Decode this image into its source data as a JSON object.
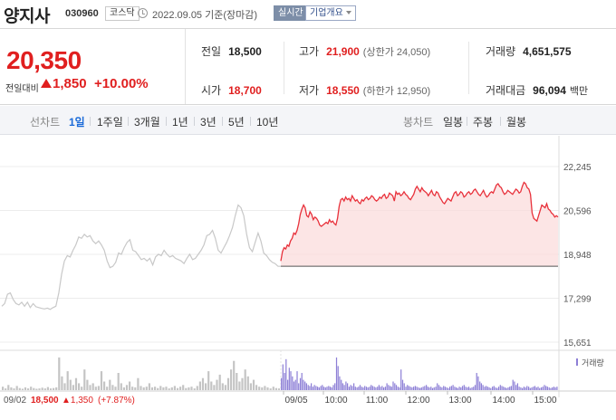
{
  "header": {
    "name": "양지사",
    "code": "030960",
    "market": "코스닥",
    "date": "2022.09.05  기준(장마감)",
    "realtime_label": "실시간",
    "company_label": "기업개요"
  },
  "price": {
    "current": "20,350",
    "change_label": "전일대비",
    "change": "1,850",
    "change_rate": "+10.00%"
  },
  "stats": {
    "prev_close_label": "전일",
    "prev_close": "18,500",
    "high_label": "고가",
    "high": "21,900",
    "upper_limit": "(상한가 24,050)",
    "volume_label": "거래량",
    "volume": "4,651,575",
    "open_label": "시가",
    "open": "18,700",
    "low_label": "저가",
    "low": "18,550",
    "lower_limit": "(하한가 12,950)",
    "amount_label": "거래대금",
    "amount": "96,094",
    "amount_unit": "백만"
  },
  "tabs": {
    "line_label": "선차트",
    "line_tabs": [
      "1일",
      "1주일",
      "3개월",
      "1년",
      "3년",
      "5년",
      "10년"
    ],
    "candle_label": "봉차트",
    "candle_tabs": [
      "일봉",
      "주봉",
      "월봉"
    ]
  },
  "colors": {
    "up": "#e01f1f",
    "line_today": "#e8313b",
    "area_fill": "#fbdcdc",
    "line_prev": "#c8c8c8",
    "volume_prev": "#c4c4c4",
    "volume_today": "#8d7fd6",
    "active_tab": "#1a6ad8"
  },
  "chart_data": {
    "type": "line",
    "y_ticks": [
      "22,245",
      "20,596",
      "18,948",
      "17,299",
      "15,651"
    ],
    "ylim": [
      15651,
      22245
    ],
    "x_labels": [
      "09/05",
      "10:00",
      "11:00",
      "12:00",
      "13:00",
      "14:00",
      "15:00"
    ],
    "prev_close": 18500,
    "volume_label": "거래량",
    "footer": {
      "date": "09/02",
      "close": "18,500",
      "change": "▲1,350",
      "rate": "(+7.87%)"
    },
    "series": [
      {
        "values": [
          17000,
          17100,
          17450,
          17500,
          17250,
          17100,
          17050,
          17150,
          17000,
          17150,
          16950,
          17100,
          16980,
          16950,
          16920,
          16900,
          16930,
          16880,
          16950,
          17000,
          17500,
          18200,
          18700,
          18900,
          18850,
          19100,
          19300,
          19600,
          19550,
          19700,
          19600,
          19650,
          19450,
          19350,
          19450,
          19300,
          19100,
          18700,
          18450,
          18500,
          18650,
          19000,
          18950,
          19200,
          19400,
          19500,
          19100,
          19050,
          18900,
          18750,
          18800,
          18700,
          18800,
          18550,
          18850,
          18950,
          18900,
          19100,
          18950,
          18850,
          18900,
          18800,
          18750,
          18700,
          18600,
          18800,
          18950,
          18750,
          18800,
          18950,
          19100,
          19300,
          19650,
          19700,
          19850,
          19550,
          19100,
          19000,
          19200,
          19400,
          19650,
          19950,
          20400,
          20800,
          20700,
          20400,
          19700,
          19200,
          19050,
          19400,
          19750,
          19450,
          19000,
          18900,
          18750,
          18650,
          18600,
          18500,
          18500
        ]
      },
      {
        "values": [
          18700,
          19050,
          19200,
          19150,
          19300,
          19250,
          19450,
          19550,
          19750,
          19700,
          19850,
          20100,
          20450,
          20650,
          20800,
          20700,
          20400,
          20350,
          20550,
          20450,
          20250,
          20350,
          20300,
          20200,
          20050,
          20000,
          20050,
          20100,
          20150,
          20100,
          20250,
          20150,
          20200,
          20100,
          20050,
          20300,
          20750,
          21000,
          21050,
          20950,
          21100,
          21000,
          21050,
          20950,
          21150,
          21050,
          20950,
          21000,
          20900,
          20850,
          21000,
          20950,
          21050,
          21100,
          21000,
          21050,
          21150,
          21100,
          21000,
          20950,
          21000,
          21100,
          21050,
          21150,
          21200,
          21050,
          21100,
          21250,
          21200,
          21150,
          20950,
          21300,
          21200,
          21250,
          21150,
          21200,
          21300,
          21200,
          21150,
          21050,
          21000,
          21100,
          21200,
          21400,
          21500,
          21400,
          21300,
          21450,
          21350,
          21300,
          21250,
          21150,
          21250,
          21350,
          21200,
          21150,
          21300,
          21250,
          21100,
          21000,
          20900,
          20850,
          20950,
          21050,
          21000,
          20950,
          21100,
          21250,
          21300,
          21150,
          21200,
          21300,
          21250,
          21100,
          21150,
          21250,
          21300,
          21200,
          21250,
          21350,
          21400,
          21300,
          21200,
          21150,
          21250,
          21350,
          21200,
          21100,
          21150,
          21250,
          21300,
          21250,
          21400,
          21550,
          21600,
          21500,
          21450,
          21300,
          21200,
          21250,
          21350,
          21300,
          21250,
          21200,
          21300,
          21400,
          21350,
          21250,
          21300,
          21500,
          21650,
          21600,
          21450,
          21400,
          21200,
          20500,
          20300,
          20250,
          20200,
          20400,
          20600,
          20800,
          20750,
          20700,
          20850,
          20650,
          20600,
          20500,
          20450,
          20350,
          20400,
          20350
        ]
      }
    ],
    "volume": {
      "prev": [
        0.1,
        0.05,
        0.15,
        0.08,
        0.05,
        0.12,
        0.06,
        0.04,
        0.08,
        0.05,
        0.1,
        0.06,
        0.04,
        0.05,
        0.07,
        0.05,
        0.09,
        0.05,
        0.06,
        0.08,
        0.95,
        0.4,
        0.2,
        0.55,
        0.3,
        0.15,
        0.35,
        0.2,
        0.1,
        0.6,
        0.3,
        0.15,
        0.2,
        0.1,
        0.12,
        0.55,
        0.25,
        0.1,
        0.3,
        0.15,
        0.1,
        0.5,
        0.2,
        0.08,
        0.15,
        0.25,
        0.1,
        0.08,
        0.35,
        0.12,
        0.08,
        0.1,
        0.2,
        0.08,
        0.1,
        0.06,
        0.12,
        0.08,
        0.1,
        0.05,
        0.08,
        0.12,
        0.06,
        0.1,
        0.15,
        0.06,
        0.08,
        0.1,
        0.05,
        0.12,
        0.25,
        0.35,
        0.2,
        0.55,
        0.25,
        0.15,
        0.3,
        0.45,
        0.2,
        0.15,
        0.35,
        0.6,
        0.85,
        0.5,
        0.25,
        0.35,
        0.6,
        0.4,
        0.2,
        0.3,
        0.15,
        0.1,
        0.08,
        0.12,
        0.08,
        0.05,
        0.1,
        0.06,
        0.05
      ],
      "today": [
        0.35,
        0.75,
        0.5,
        0.9,
        0.3,
        0.65,
        0.55,
        0.4,
        0.25,
        0.3,
        0.55,
        0.2,
        0.35,
        0.5,
        0.3,
        0.25,
        0.2,
        0.15,
        0.12,
        0.2,
        0.1,
        0.15,
        0.12,
        0.1,
        0.08,
        0.12,
        0.15,
        0.1,
        0.08,
        0.1,
        0.12,
        0.1,
        0.08,
        0.15,
        0.2,
        0.95,
        0.7,
        0.4,
        0.3,
        0.2,
        0.15,
        0.25,
        0.2,
        0.1,
        0.15,
        0.12,
        0.2,
        0.1,
        0.08,
        0.1,
        0.15,
        0.1,
        0.08,
        0.12,
        0.1,
        0.08,
        0.1,
        0.15,
        0.12,
        0.1,
        0.08,
        0.1,
        0.15,
        0.1,
        0.12,
        0.08,
        0.1,
        0.2,
        0.15,
        0.12,
        0.1,
        0.25,
        0.2,
        0.15,
        0.1,
        0.08,
        0.6,
        0.3,
        0.2,
        0.1,
        0.15,
        0.12,
        0.1,
        0.08,
        0.1,
        0.12,
        0.1,
        0.08,
        0.06,
        0.08,
        0.1,
        0.12,
        0.15,
        0.1,
        0.08,
        0.1,
        0.06,
        0.08,
        0.1,
        0.2,
        0.15,
        0.1,
        0.08,
        0.12,
        0.1,
        0.08,
        0.06,
        0.1,
        0.12,
        0.15,
        0.1,
        0.08,
        0.06,
        0.1,
        0.08,
        0.12,
        0.15,
        0.1,
        0.08,
        0.1,
        0.06,
        0.08,
        0.1,
        0.15,
        0.5,
        0.4,
        0.25,
        0.2,
        0.15,
        0.1,
        0.12,
        0.1,
        0.08,
        0.06,
        0.1,
        0.12,
        0.08,
        0.06,
        0.1,
        0.15,
        0.12,
        0.1,
        0.08,
        0.06,
        0.08,
        0.1,
        0.12,
        0.3,
        0.25,
        0.15,
        0.2,
        0.1,
        0.08,
        0.06,
        0.1,
        0.08,
        0.12,
        0.1,
        0.06,
        0.08,
        0.1,
        0.12,
        0.08,
        0.1,
        0.06,
        0.08,
        0.1,
        0.15,
        0.12,
        0.1,
        0.08,
        0.06,
        0.08,
        0.1,
        0.08,
        0.1
      ]
    }
  }
}
